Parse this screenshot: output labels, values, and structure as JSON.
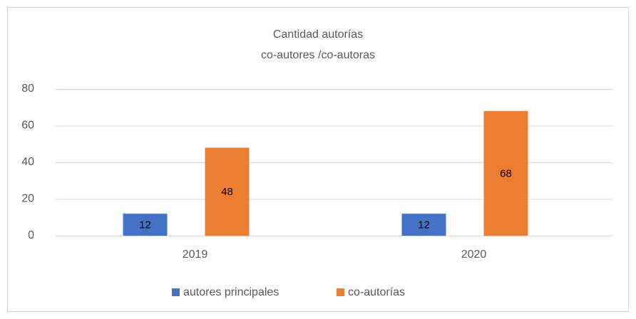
{
  "chart_data": {
    "type": "bar",
    "title": [
      "Cantidad autorías",
      "co-autores /co-autoras"
    ],
    "categories": [
      "2019",
      "2020"
    ],
    "series": [
      {
        "name": "autores principales",
        "color": "#4472c4",
        "values": [
          12,
          12
        ]
      },
      {
        "name": "co-autorías",
        "color": "#ed7d31",
        "values": [
          48,
          68
        ]
      }
    ],
    "ylim": [
      0,
      80
    ],
    "yticks": [
      0,
      20,
      40,
      60,
      80
    ],
    "grid": true,
    "legend": "bottom"
  }
}
